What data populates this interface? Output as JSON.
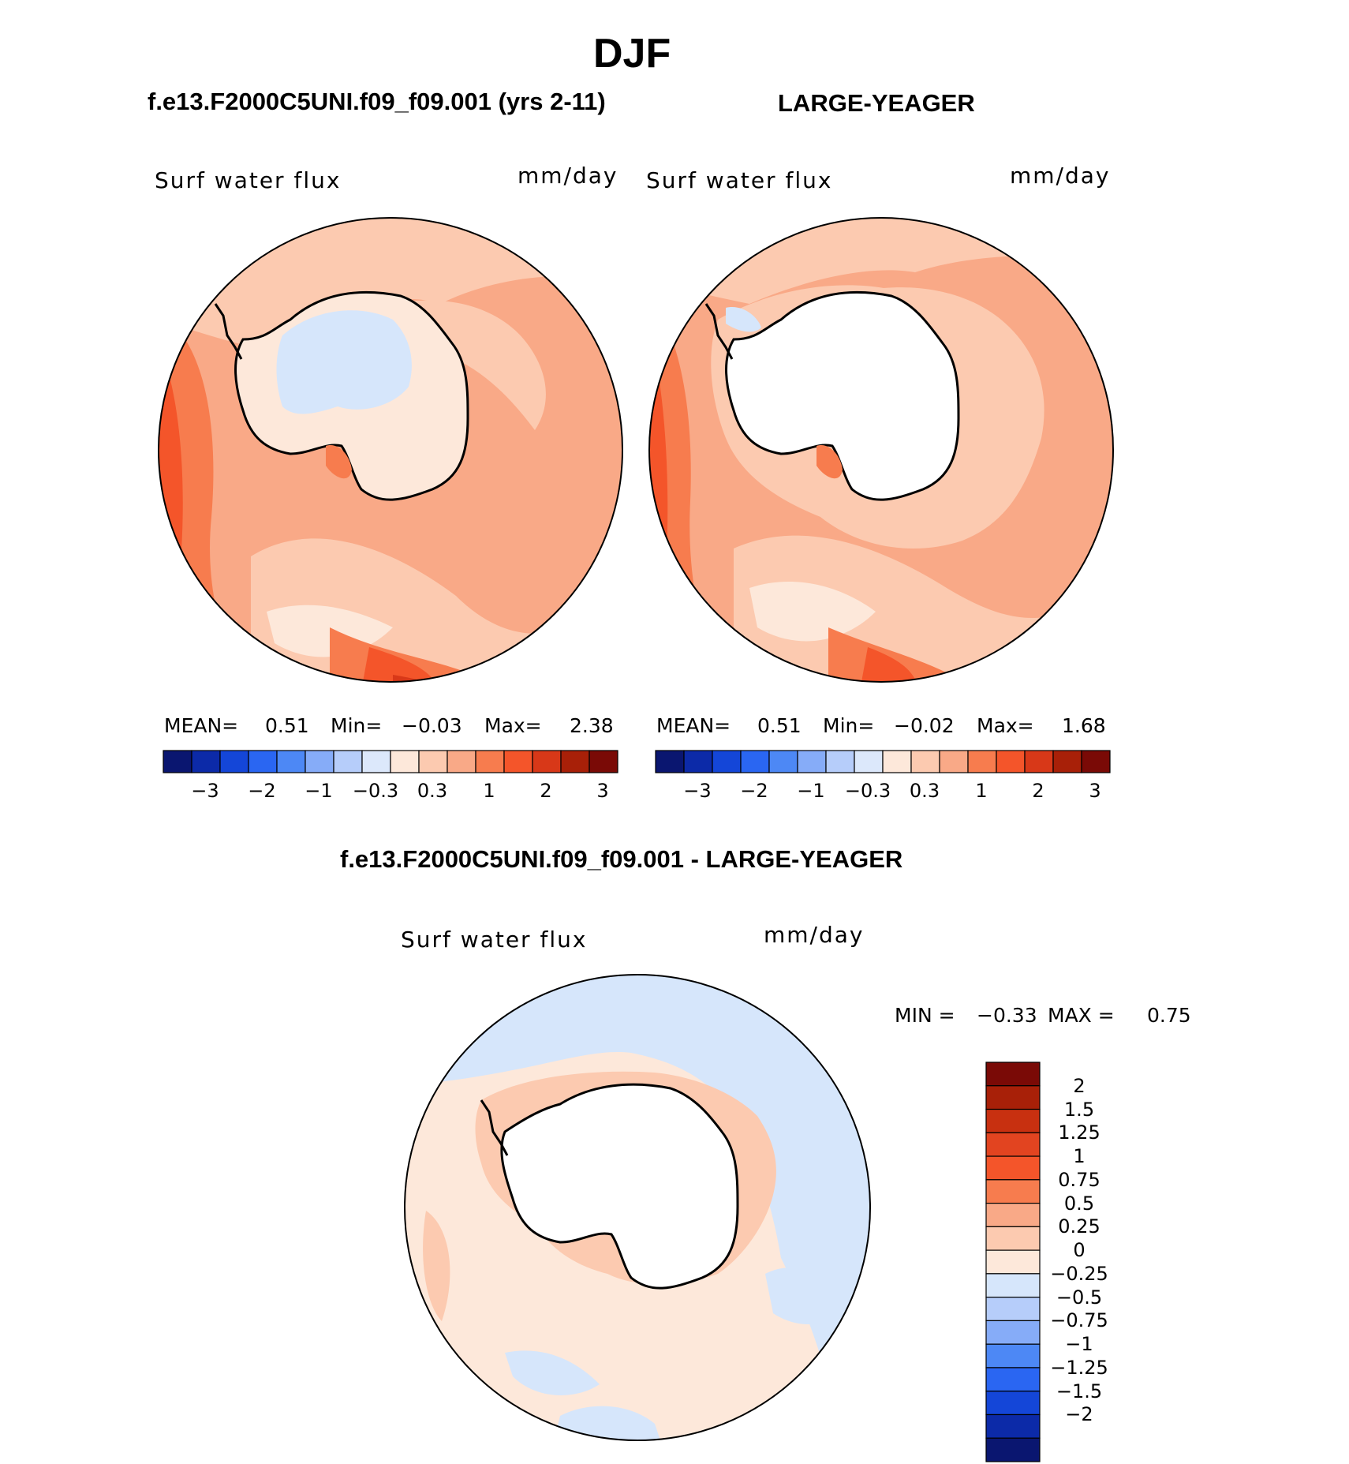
{
  "season_title": "DJF",
  "panels": [
    {
      "header": "f.e13.F2000C5UNI.f09_f09.001 (yrs 2-11)",
      "variable": "Surf water flux",
      "units": "mm/day",
      "stats": {
        "mean_label": "MEAN=",
        "mean": "0.51",
        "min_label": "Min=",
        "min": "−0.03",
        "max_label": "Max=",
        "max": "2.38"
      }
    },
    {
      "header": "LARGE-YEAGER",
      "variable": "Surf water flux",
      "units": "mm/day",
      "stats": {
        "mean_label": "MEAN=",
        "mean": "0.51",
        "min_label": "Min=",
        "min": "−0.02",
        "max_label": "Max=",
        "max": "1.68"
      }
    }
  ],
  "diff_panel": {
    "header": "f.e13.F2000C5UNI.f09_f09.001 - LARGE-YEAGER",
    "variable": "Surf water flux",
    "units": "mm/day",
    "min_label": "MIN =",
    "min": "−0.33",
    "max_label": "MAX =",
    "max": "0.75"
  },
  "colorbar_h": {
    "colors": [
      "#0a1670",
      "#0c2aa8",
      "#1446d8",
      "#2a66f2",
      "#4d88f5",
      "#86acf8",
      "#b6cdfa",
      "#dce8fb",
      "#fde8da",
      "#fccab0",
      "#f9a987",
      "#f77c4e",
      "#f4552a",
      "#d83818",
      "#a82008",
      "#7a0a06"
    ],
    "ticks": [
      "−3",
      "−2",
      "−1",
      "−0.3",
      "0.3",
      "1",
      "2",
      "3"
    ]
  },
  "colorbar_v": {
    "colors": [
      "#7a0a06",
      "#a82008",
      "#c83010",
      "#e24420",
      "#f4552a",
      "#f77c4e",
      "#f9a987",
      "#fccab0",
      "#fde8da",
      "#d6e6fb",
      "#b6cdfa",
      "#86acf8",
      "#4d88f5",
      "#2a66f2",
      "#1446d8",
      "#0c2aa8",
      "#0a1670"
    ],
    "ticks": [
      "2",
      "1.5",
      "1.25",
      "1",
      "0.75",
      "0.5",
      "0.25",
      "0",
      "−0.25",
      "−0.5",
      "−0.75",
      "−1",
      "−1.25",
      "−1.5",
      "−2"
    ]
  }
}
